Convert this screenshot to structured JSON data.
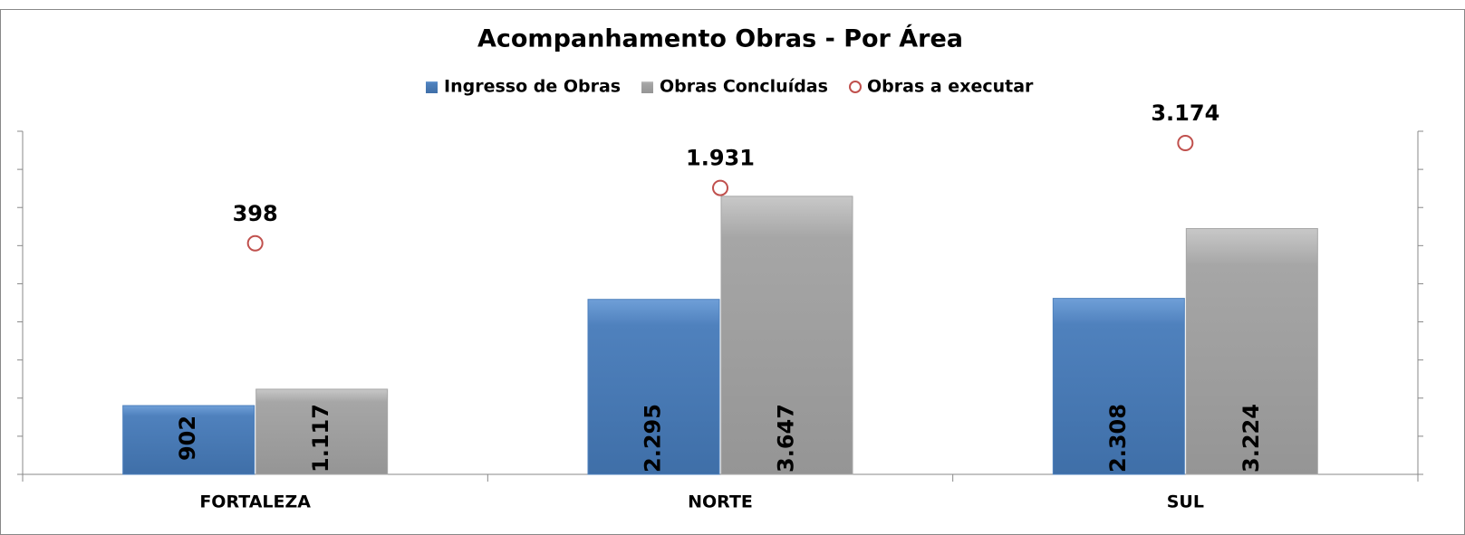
{
  "chart_data": {
    "type": "bar",
    "title": "Acompanhamento Obras - Por Área",
    "categories": [
      "FORTALEZA",
      "NORTE",
      "SUL"
    ],
    "series": [
      {
        "name": "Ingresso de Obras",
        "color": "#4f81bd",
        "values": [
          902,
          2295,
          2308
        ],
        "value_labels": [
          "902",
          "2.295",
          "2.308"
        ]
      },
      {
        "name": "Obras Concluídas",
        "color": "#a6a6a6",
        "values": [
          1117,
          3647,
          3224
        ],
        "value_labels": [
          "1.117",
          "3.647",
          "3.224"
        ]
      },
      {
        "name": "Obras a executar",
        "color": "#c0504d",
        "values": [
          398,
          1931,
          3174
        ],
        "value_labels": [
          "398",
          "1.931",
          "3.174"
        ],
        "axis": "y2",
        "type": "scatter"
      }
    ],
    "ylim": [
      0,
      4500
    ],
    "yticks": [
      0,
      500,
      1000,
      1500,
      2000,
      2500,
      3000,
      3500,
      4000,
      4500
    ],
    "y2lim": [
      -6000,
      3500
    ],
    "legend": "top"
  }
}
